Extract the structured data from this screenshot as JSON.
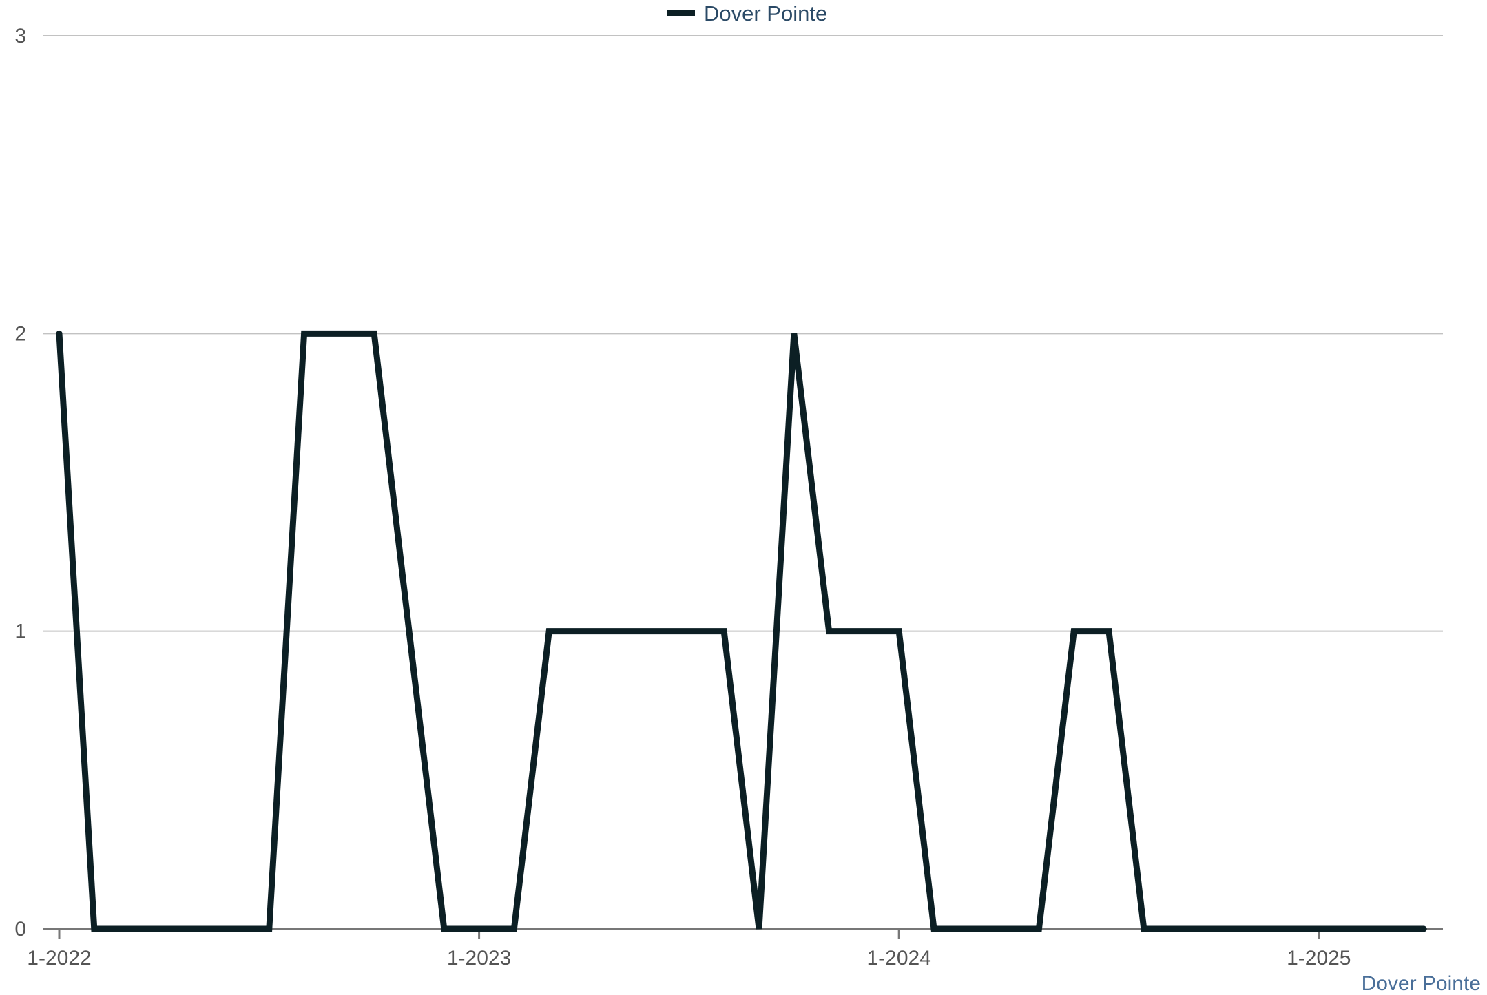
{
  "chart_data": {
    "type": "line",
    "title": "",
    "xlabel": "",
    "ylabel": "",
    "x_tick_labels": [
      "1-2022",
      "1-2023",
      "1-2024",
      "1-2025"
    ],
    "y_ticks": [
      0,
      1,
      2,
      3
    ],
    "ylim": [
      0,
      3
    ],
    "grid": true,
    "legend_position": "top-center",
    "source_label": "Dover Pointe",
    "colors": {
      "line": "#0c1f24",
      "grid": "#c2c2c2",
      "axis": "#777777",
      "legend_text": "#2b4a66",
      "source_text": "#4a6f99"
    },
    "series": [
      {
        "name": "Dover Pointe",
        "x": [
          "2022-01",
          "2022-02",
          "2022-03",
          "2022-04",
          "2022-05",
          "2022-06",
          "2022-07",
          "2022-08",
          "2022-09",
          "2022-10",
          "2022-11",
          "2022-12",
          "2023-01",
          "2023-02",
          "2023-03",
          "2023-04",
          "2023-05",
          "2023-06",
          "2023-07",
          "2023-08",
          "2023-09",
          "2023-10",
          "2023-11",
          "2023-12",
          "2024-01",
          "2024-02",
          "2024-03",
          "2024-04",
          "2024-05",
          "2024-06",
          "2024-07",
          "2024-08",
          "2024-09",
          "2024-10",
          "2024-11",
          "2024-12",
          "2025-01",
          "2025-02",
          "2025-03",
          "2025-04"
        ],
        "values": [
          2,
          0,
          0,
          0,
          0,
          0,
          0,
          2,
          2,
          2,
          1,
          0,
          0,
          0,
          1,
          1,
          1,
          1,
          1,
          1,
          0,
          2,
          1,
          1,
          1,
          0,
          0,
          0,
          0,
          1,
          1,
          0,
          0,
          0,
          0,
          0,
          0,
          0,
          0,
          0
        ]
      }
    ]
  }
}
